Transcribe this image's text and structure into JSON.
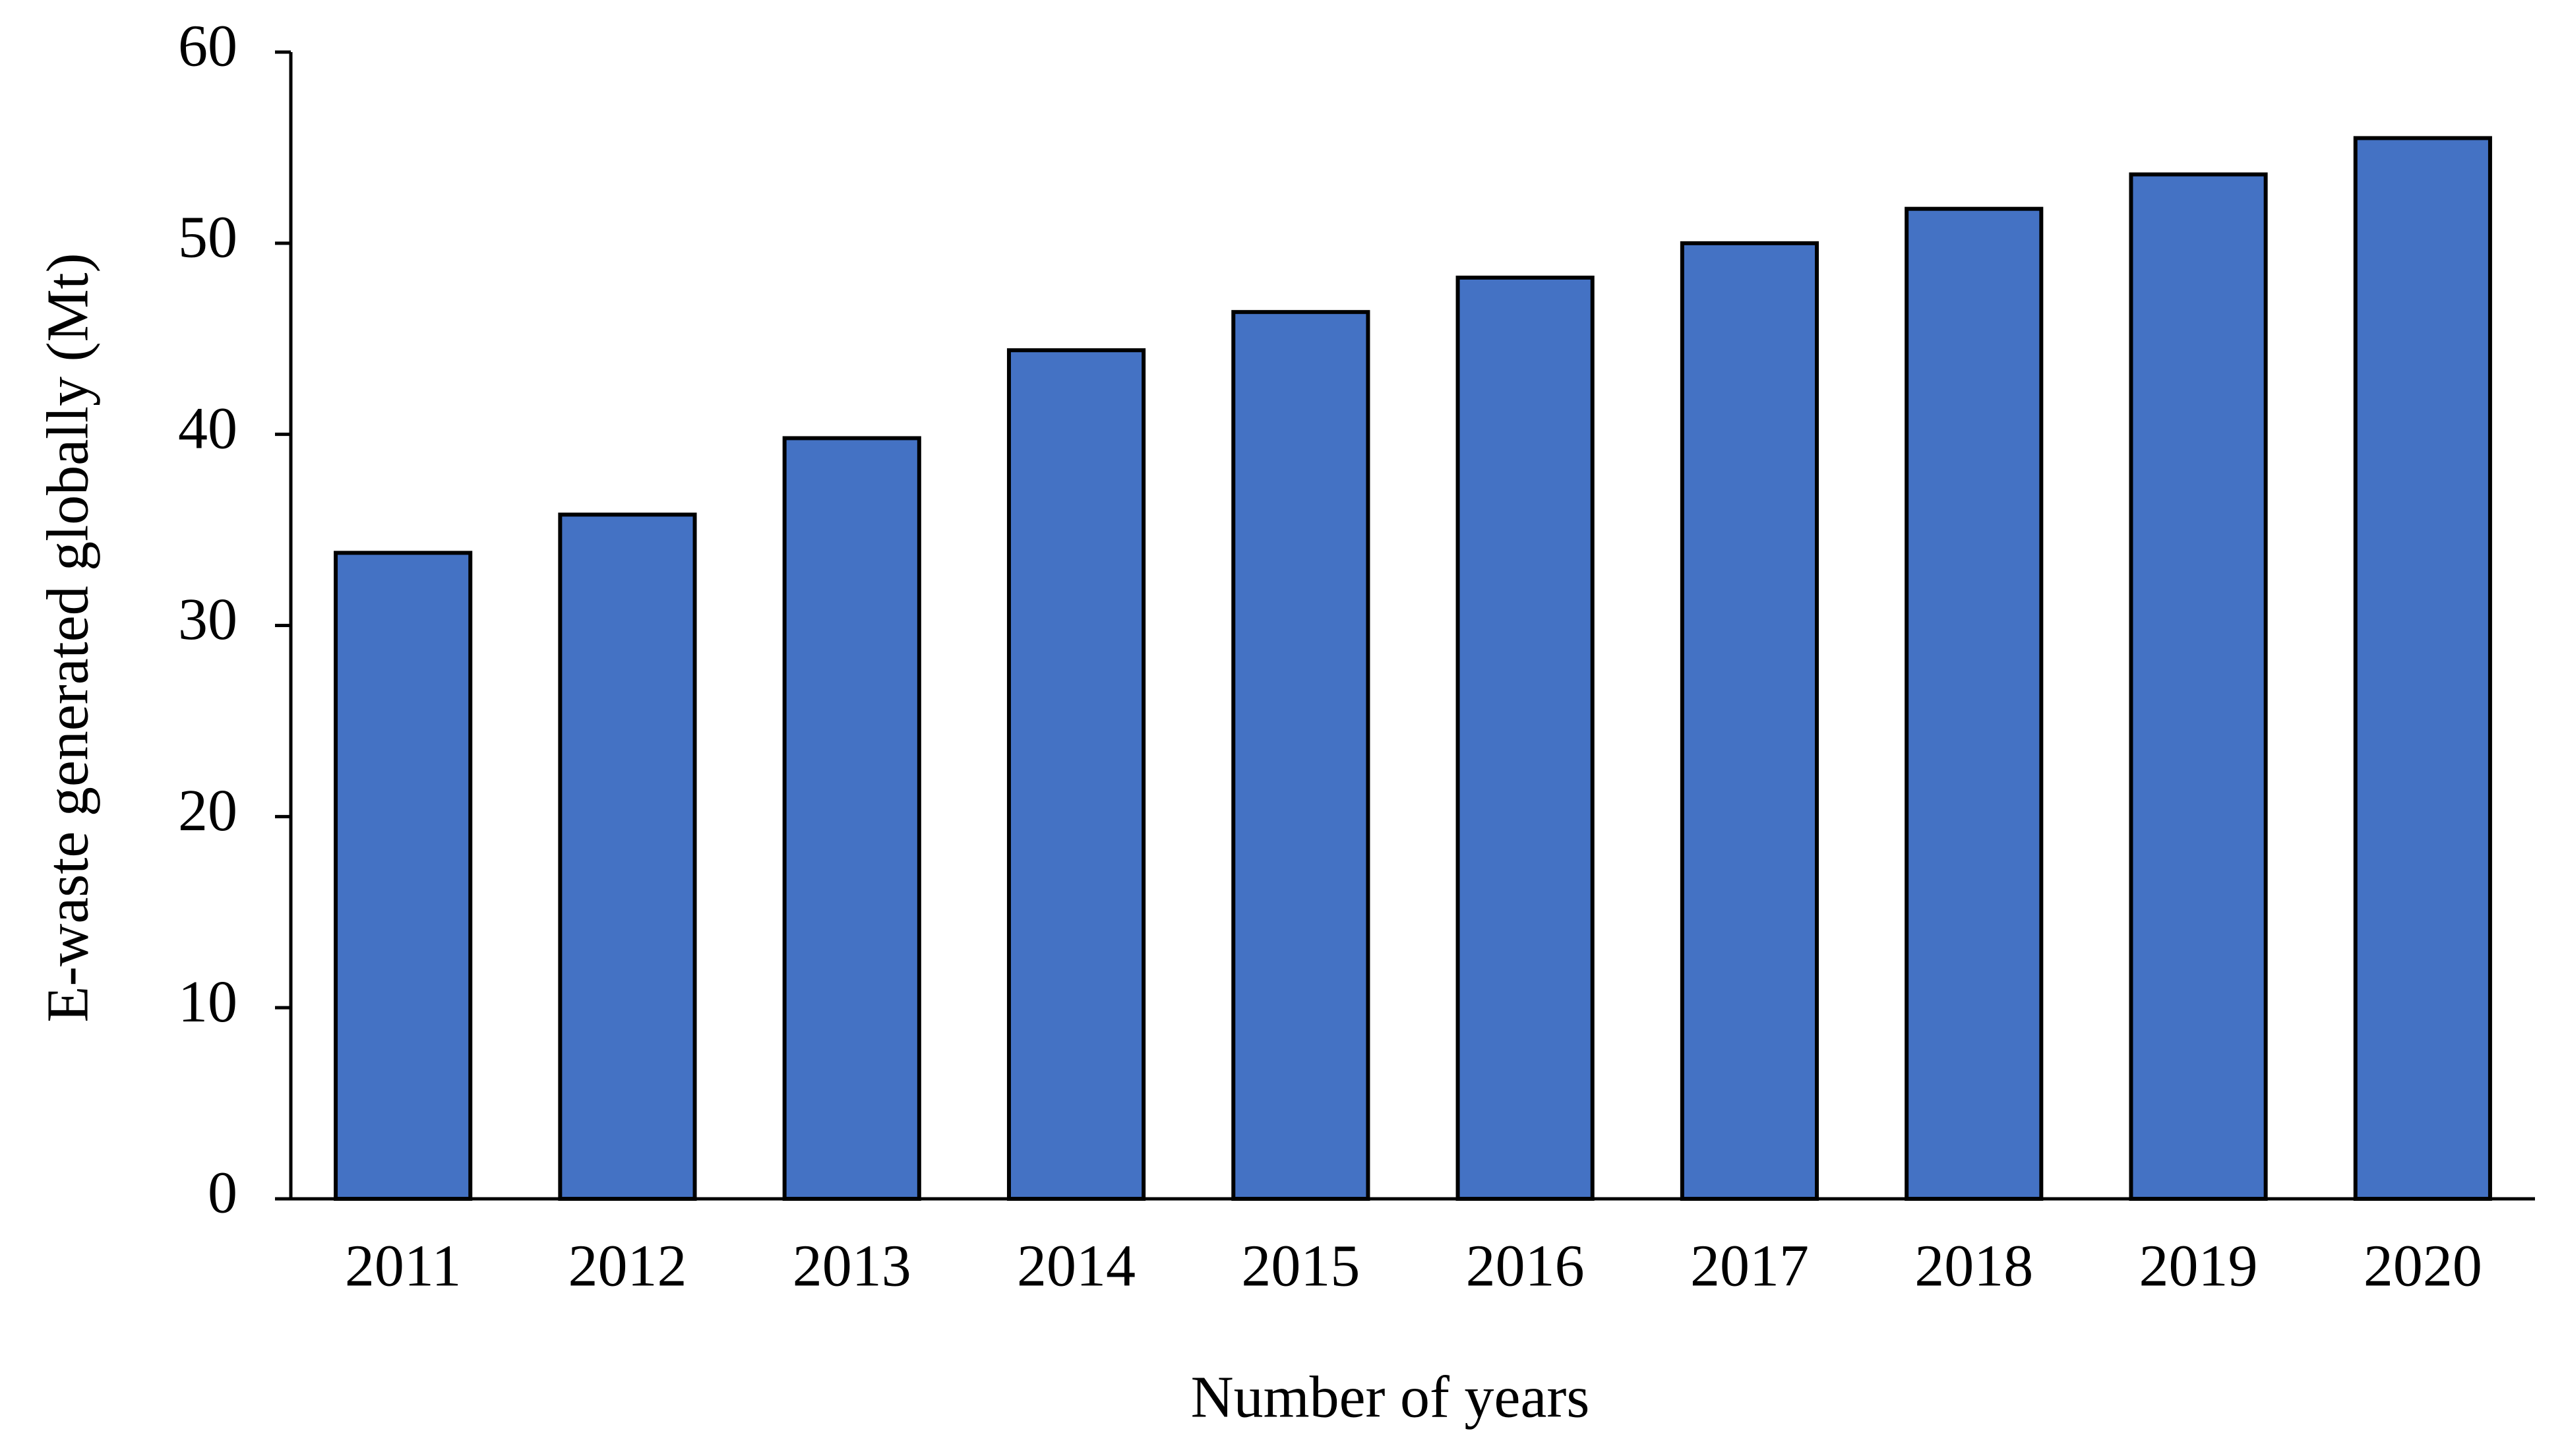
{
  "chart_data": {
    "type": "bar",
    "x_label": "Number of years",
    "y_label": "E-waste generated globally (Mt)",
    "categories": [
      "2011",
      "2012",
      "2013",
      "2014",
      "2015",
      "2016",
      "2017",
      "2018",
      "2019",
      "2020"
    ],
    "values": [
      33.8,
      35.8,
      39.8,
      44.4,
      46.4,
      48.2,
      50.0,
      51.8,
      53.6,
      55.5
    ],
    "color": "#4472c4",
    "ylim": [
      0,
      60
    ],
    "yticks": [
      0,
      10,
      20,
      30,
      40,
      50,
      60
    ],
    "grid": false
  }
}
